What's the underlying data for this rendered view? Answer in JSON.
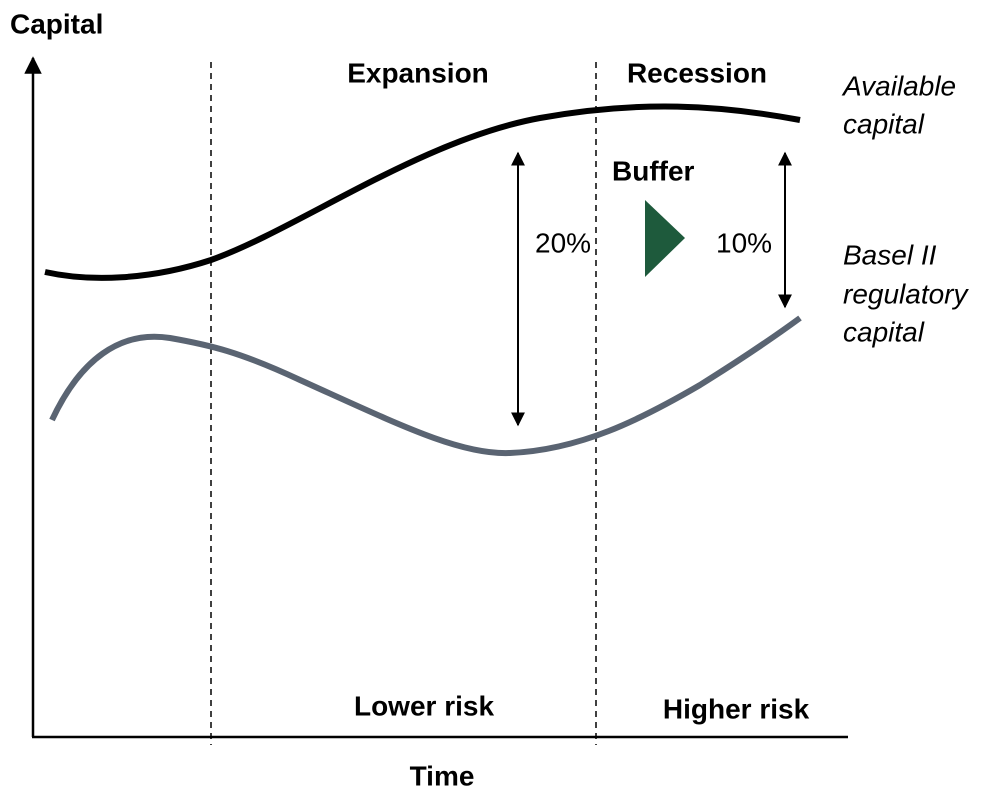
{
  "axis": {
    "y_label": "Capital",
    "x_label": "Time"
  },
  "phases": [
    "Expansion",
    "Recession"
  ],
  "risk": [
    "Lower risk",
    "Higher risk"
  ],
  "curves": {
    "available": [
      "Available",
      "capital"
    ],
    "regulatory": [
      "Basel II",
      "regulatory",
      "capital"
    ]
  },
  "buffer": {
    "title": "Buffer",
    "expansion": "20%",
    "recession": "10%"
  }
}
